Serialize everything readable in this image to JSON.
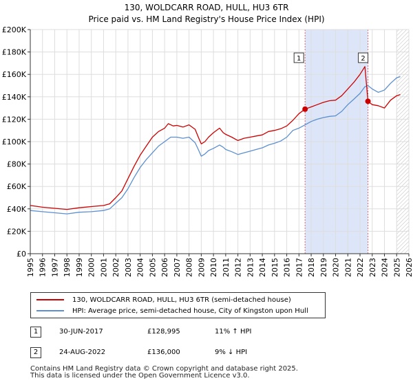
{
  "title": "130, WOLDCARR ROAD, HULL, HU3 6TR",
  "subtitle": "Price paid vs. HM Land Registry's House Price Index (HPI)",
  "colors": {
    "property_line": "#cc0000",
    "hpi_line": "#5b8fcf",
    "shade": "#dde6f8",
    "vline": "#e06666",
    "grid": "#dddddd"
  },
  "chart_data": {
    "type": "line",
    "title": "Price paid vs. HM Land Registry's House Price Index (HPI)",
    "xlim": [
      1995,
      2026
    ],
    "ylim": [
      0,
      200000
    ],
    "x_ticks": [
      "1995",
      "1996",
      "1997",
      "1998",
      "1999",
      "2000",
      "2001",
      "2002",
      "2003",
      "2004",
      "2005",
      "2006",
      "2007",
      "2008",
      "2009",
      "2010",
      "2011",
      "2012",
      "2013",
      "2014",
      "2015",
      "2016",
      "2017",
      "2018",
      "2019",
      "2020",
      "2021",
      "2022",
      "2023",
      "2024",
      "2025",
      "2026"
    ],
    "y_ticks": [
      {
        "value": 0,
        "label": "£0"
      },
      {
        "value": 20000,
        "label": "£20K"
      },
      {
        "value": 40000,
        "label": "£40K"
      },
      {
        "value": 60000,
        "label": "£60K"
      },
      {
        "value": 80000,
        "label": "£80K"
      },
      {
        "value": 100000,
        "label": "£100K"
      },
      {
        "value": 120000,
        "label": "£120K"
      },
      {
        "value": 140000,
        "label": "£140K"
      },
      {
        "value": 160000,
        "label": "£160K"
      },
      {
        "value": 180000,
        "label": "£180K"
      },
      {
        "value": 200000,
        "label": "£200K"
      }
    ],
    "shaded_region": [
      2017.5,
      2022.65
    ],
    "future_hatch_from": 2025.0,
    "series": [
      {
        "name": "130, WOLDCARR ROAD, HULL, HU3 6TR (semi-detached house)",
        "points": [
          [
            1995,
            43000
          ],
          [
            1996,
            41500
          ],
          [
            1997,
            40500
          ],
          [
            1998,
            39500
          ],
          [
            1999,
            41000
          ],
          [
            2000,
            42000
          ],
          [
            2001,
            43000
          ],
          [
            2001.5,
            44500
          ],
          [
            2002,
            50000
          ],
          [
            2002.5,
            56000
          ],
          [
            2003,
            67000
          ],
          [
            2003.5,
            78000
          ],
          [
            2004,
            88000
          ],
          [
            2004.5,
            96000
          ],
          [
            2005,
            104000
          ],
          [
            2005.5,
            109000
          ],
          [
            2006,
            112000
          ],
          [
            2006.3,
            116000
          ],
          [
            2006.7,
            114000
          ],
          [
            2007,
            114500
          ],
          [
            2007.5,
            113000
          ],
          [
            2008,
            115000
          ],
          [
            2008.5,
            111000
          ],
          [
            2008.8,
            103000
          ],
          [
            2009,
            98000
          ],
          [
            2009.3,
            100000
          ],
          [
            2009.6,
            104000
          ],
          [
            2010,
            108000
          ],
          [
            2010.5,
            112000
          ],
          [
            2010.8,
            108000
          ],
          [
            2011,
            106500
          ],
          [
            2011.5,
            104000
          ],
          [
            2012,
            101000
          ],
          [
            2012.5,
            103000
          ],
          [
            2013,
            104000
          ],
          [
            2013.5,
            105000
          ],
          [
            2014,
            106000
          ],
          [
            2014.5,
            109000
          ],
          [
            2015,
            110000
          ],
          [
            2015.5,
            111500
          ],
          [
            2016,
            114000
          ],
          [
            2016.5,
            119000
          ],
          [
            2017,
            125000
          ],
          [
            2017.5,
            128995
          ],
          [
            2018,
            131000
          ],
          [
            2018.5,
            133000
          ],
          [
            2019,
            135000
          ],
          [
            2019.5,
            136500
          ],
          [
            2020,
            137000
          ],
          [
            2020.5,
            141000
          ],
          [
            2021,
            147000
          ],
          [
            2021.5,
            153000
          ],
          [
            2022,
            160000
          ],
          [
            2022.4,
            167000
          ],
          [
            2022.65,
            136000
          ],
          [
            2023,
            133000
          ],
          [
            2023.5,
            132000
          ],
          [
            2024,
            130000
          ],
          [
            2024.5,
            137000
          ],
          [
            2025,
            141000
          ],
          [
            2025.3,
            142000
          ]
        ]
      },
      {
        "name": "HPI: Average price, semi-detached house, City of Kingston upon Hull",
        "points": [
          [
            1995,
            38500
          ],
          [
            1996,
            37500
          ],
          [
            1997,
            36500
          ],
          [
            1998,
            35500
          ],
          [
            1999,
            37000
          ],
          [
            2000,
            37500
          ],
          [
            2001,
            38500
          ],
          [
            2001.5,
            40000
          ],
          [
            2002,
            45000
          ],
          [
            2002.5,
            50000
          ],
          [
            2003,
            58000
          ],
          [
            2003.5,
            68000
          ],
          [
            2004,
            77000
          ],
          [
            2004.5,
            84000
          ],
          [
            2005,
            90000
          ],
          [
            2005.5,
            96000
          ],
          [
            2006,
            100000
          ],
          [
            2006.5,
            104000
          ],
          [
            2007,
            104000
          ],
          [
            2007.5,
            103000
          ],
          [
            2008,
            104000
          ],
          [
            2008.5,
            99000
          ],
          [
            2008.8,
            92000
          ],
          [
            2009,
            87000
          ],
          [
            2009.3,
            89000
          ],
          [
            2009.6,
            92000
          ],
          [
            2010,
            94000
          ],
          [
            2010.5,
            97000
          ],
          [
            2010.8,
            95000
          ],
          [
            2011,
            93000
          ],
          [
            2011.5,
            91000
          ],
          [
            2012,
            88500
          ],
          [
            2012.5,
            90000
          ],
          [
            2013,
            91500
          ],
          [
            2013.5,
            93000
          ],
          [
            2014,
            94500
          ],
          [
            2014.5,
            97000
          ],
          [
            2015,
            98500
          ],
          [
            2015.5,
            100500
          ],
          [
            2016,
            104000
          ],
          [
            2016.5,
            110000
          ],
          [
            2017,
            112000
          ],
          [
            2017.5,
            115000
          ],
          [
            2018,
            118000
          ],
          [
            2018.5,
            120000
          ],
          [
            2019,
            121500
          ],
          [
            2019.5,
            122500
          ],
          [
            2020,
            123000
          ],
          [
            2020.5,
            127000
          ],
          [
            2021,
            133000
          ],
          [
            2021.5,
            138000
          ],
          [
            2022,
            143000
          ],
          [
            2022.4,
            149000
          ],
          [
            2022.65,
            150000
          ],
          [
            2023,
            147000
          ],
          [
            2023.5,
            144000
          ],
          [
            2024,
            146000
          ],
          [
            2024.5,
            152000
          ],
          [
            2025,
            157000
          ],
          [
            2025.3,
            158000
          ]
        ]
      }
    ],
    "annotations": [
      {
        "label": "1",
        "x": 2017.5,
        "y": 128995
      },
      {
        "label": "2",
        "x": 2022.65,
        "y": 136000
      }
    ]
  },
  "legend": {
    "property_label": "130, WOLDCARR ROAD, HULL, HU3 6TR (semi-detached house)",
    "hpi_label": "HPI: Average price, semi-detached house, City of Kingston upon Hull"
  },
  "transactions": [
    {
      "num": "1",
      "date": "30-JUN-2017",
      "price": "£128,995",
      "hpi": "11% ↑ HPI"
    },
    {
      "num": "2",
      "date": "24-AUG-2022",
      "price": "£136,000",
      "hpi": "9% ↓ HPI"
    }
  ],
  "footer": {
    "line1": "Contains HM Land Registry data © Crown copyright and database right 2025.",
    "line2": "This data is licensed under the Open Government Licence v3.0."
  }
}
